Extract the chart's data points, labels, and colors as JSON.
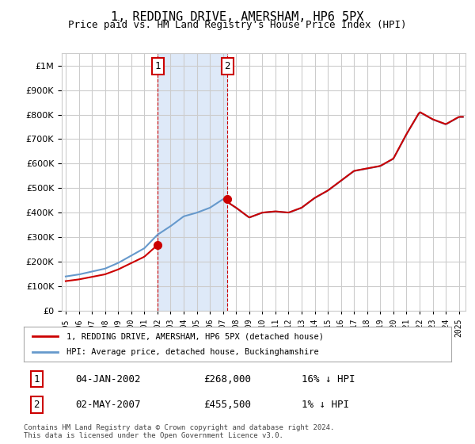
{
  "title": "1, REDDING DRIVE, AMERSHAM, HP6 5PX",
  "subtitle": "Price paid vs. HM Land Registry's House Price Index (HPI)",
  "ylabel_ticks": [
    "£0",
    "£100K",
    "£200K",
    "£300K",
    "£400K",
    "£500K",
    "£600K",
    "£700K",
    "£800K",
    "£900K",
    "£1M"
  ],
  "ytick_values": [
    0,
    100000,
    200000,
    300000,
    400000,
    500000,
    600000,
    700000,
    800000,
    900000,
    1000000
  ],
  "ylim": [
    0,
    1050000
  ],
  "xlim_start": 1995.0,
  "xlim_end": 2025.5,
  "purchase1_x": 2002.02,
  "purchase1_y": 268000,
  "purchase2_x": 2007.33,
  "purchase2_y": 455500,
  "purchase_color": "#cc0000",
  "hpi_color": "#6699cc",
  "line_color": "#cc0000",
  "highlight_fill": "#d6e4f7",
  "highlight_alpha": 0.5,
  "legend_label_red": "1, REDDING DRIVE, AMERSHAM, HP6 5PX (detached house)",
  "legend_label_blue": "HPI: Average price, detached house, Buckinghamshire",
  "table_entries": [
    {
      "num": "1",
      "date": "04-JAN-2002",
      "price": "£268,000",
      "hpi": "16% ↓ HPI"
    },
    {
      "num": "2",
      "date": "02-MAY-2007",
      "price": "£455,500",
      "hpi": "1% ↓ HPI"
    }
  ],
  "footnote": "Contains HM Land Registry data © Crown copyright and database right 2024.\nThis data is licensed under the Open Government Licence v3.0.",
  "background_color": "#ffffff",
  "grid_color": "#cccccc",
  "font_family": "DejaVu Sans Mono"
}
